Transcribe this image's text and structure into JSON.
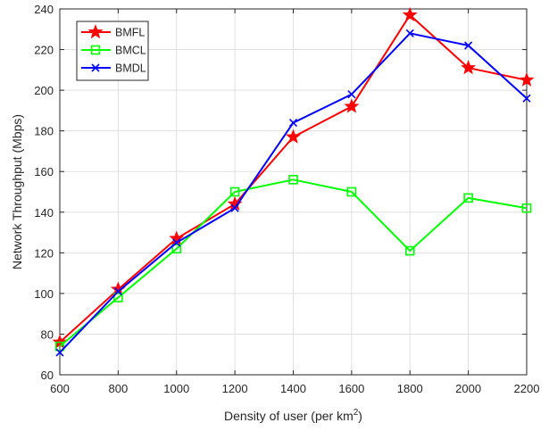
{
  "chart_data": {
    "type": "line",
    "title": "",
    "xlabel_prefix": "Density of user (per km",
    "xlabel_sup": "2",
    "xlabel_suffix": ")",
    "ylabel": "Network Throughput (Mbps)",
    "x": [
      600,
      800,
      1000,
      1200,
      1400,
      1600,
      1800,
      2000,
      2200
    ],
    "xlim": [
      600,
      2200
    ],
    "ylim": [
      60,
      240
    ],
    "xticks": [
      600,
      800,
      1000,
      1200,
      1400,
      1600,
      1800,
      2000,
      2200
    ],
    "yticks": [
      60,
      80,
      100,
      120,
      140,
      160,
      180,
      200,
      220,
      240
    ],
    "grid": true,
    "legend_position": "top-left",
    "series": [
      {
        "name": "BMFL",
        "color": "#ff0000",
        "marker": "star",
        "values": [
          76,
          102,
          127,
          144,
          177,
          192,
          237,
          211,
          205
        ]
      },
      {
        "name": "BMCL",
        "color": "#00ff00",
        "marker": "square",
        "values": [
          74,
          98,
          122,
          150,
          156,
          150,
          121,
          147,
          142
        ]
      },
      {
        "name": "BMDL",
        "color": "#0000ff",
        "marker": "x",
        "values": [
          71,
          101,
          125,
          142,
          184,
          198,
          228,
          222,
          196
        ]
      }
    ]
  }
}
